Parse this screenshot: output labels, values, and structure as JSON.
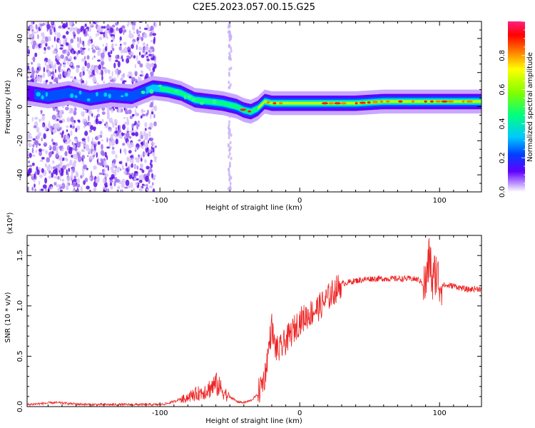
{
  "title": "C2E5.2023.057.00.15.G25",
  "chart_data": [
    {
      "type": "heatmap",
      "title": "C2E5.2023.057.00.15.G25",
      "xlabel": "Height of straight line (km)",
      "ylabel": "Frequency (Hz)",
      "xlim": [
        -195,
        130
      ],
      "ylim": [
        -50,
        50
      ],
      "x_ticks": [
        "-100",
        "0",
        "100"
      ],
      "y_ticks": [
        "-40",
        "-20",
        "0",
        "20",
        "40"
      ],
      "grid": false,
      "colorbar": {
        "label": "Normalized spectral amplitude",
        "range": [
          0,
          1
        ],
        "ticks": [
          "0.0",
          "0.2",
          "0.4",
          "0.6",
          "0.8"
        ],
        "colors": [
          "#ffffff",
          "#c8a8ff",
          "#6000ff",
          "#0040ff",
          "#00c8ff",
          "#00ff80",
          "#80ff00",
          "#ffff00",
          "#ff8000",
          "#ff0000",
          "#ff2080"
        ]
      },
      "ridge_frequency": {
        "x": [
          -195,
          -180,
          -165,
          -150,
          -135,
          -120,
          -105,
          -95,
          -85,
          -75,
          -65,
          -55,
          -45,
          -40,
          -35,
          -30,
          -25,
          -20,
          -10,
          0,
          10,
          20,
          40,
          60,
          80,
          100,
          130
        ],
        "y": [
          8,
          6,
          8,
          5,
          7,
          6,
          11,
          10,
          8,
          4,
          3,
          2,
          0,
          -2,
          -3,
          -1,
          3,
          2,
          2,
          2,
          2,
          2,
          2,
          3,
          3,
          3,
          3
        ]
      }
    },
    {
      "type": "line",
      "xlabel": "Height of straight line (km)",
      "ylabel": "SNR (10 * v/v)",
      "y_multiplier": "(x10⁴)",
      "xlim": [
        -195,
        130
      ],
      "ylim": [
        0,
        1.7
      ],
      "x_ticks": [
        "-100",
        "0",
        "100"
      ],
      "y_ticks": [
        "0.0",
        "0.5",
        "1.0",
        "1.5"
      ],
      "grid": false,
      "color": "#ee2020",
      "series": [
        {
          "x": [
            -195,
            -185,
            -175,
            -165,
            -150,
            -135,
            -120,
            -110,
            -100,
            -95,
            -90,
            -85,
            -80,
            -75,
            -70,
            -65,
            -60,
            -55,
            -50,
            -45,
            -40,
            -35,
            -30,
            -25,
            -22,
            -20,
            -18,
            -15,
            -10,
            -5,
            0,
            5,
            10,
            15,
            20,
            25,
            30,
            40,
            50,
            60,
            70,
            80,
            85,
            90,
            93,
            95,
            97,
            100,
            105,
            110,
            115,
            120,
            125,
            130
          ],
          "y": [
            0.02,
            0.03,
            0.04,
            0.03,
            0.02,
            0.02,
            0.02,
            0.02,
            0.02,
            0.03,
            0.05,
            0.08,
            0.12,
            0.15,
            0.18,
            0.22,
            0.28,
            0.2,
            0.1,
            0.05,
            0.04,
            0.06,
            0.12,
            0.3,
            0.6,
            0.8,
            0.6,
            0.55,
            0.65,
            0.75,
            0.85,
            0.9,
            0.95,
            1.0,
            1.08,
            1.15,
            1.22,
            1.25,
            1.27,
            1.27,
            1.27,
            1.27,
            1.26,
            1.2,
            1.5,
            1.2,
            1.35,
            1.22,
            1.2,
            1.2,
            1.18,
            1.16,
            1.17,
            1.17
          ]
        }
      ]
    }
  ]
}
